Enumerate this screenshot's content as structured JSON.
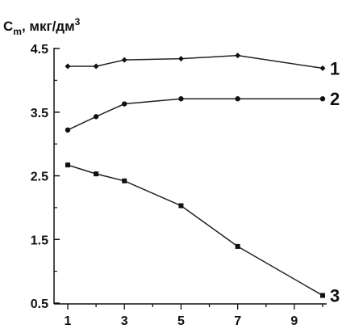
{
  "chart_data": {
    "type": "line",
    "ylabel": "C",
    "ylabel_sub": "m",
    "ylabel_unit": ", мкг/дм",
    "ylabel_sup": "3",
    "xlabel": "",
    "title": "",
    "x_ticks": [
      1,
      3,
      5,
      7,
      9
    ],
    "y_ticks": [
      0.5,
      1.5,
      2.5,
      3.5,
      4.5
    ],
    "xlim": [
      1,
      10
    ],
    "ylim": [
      0.5,
      4.5
    ],
    "grid": false,
    "colors": {
      "line": "#222222",
      "marker": "#111111"
    },
    "series": [
      {
        "label": "1",
        "marker": "diamond",
        "x": [
          1,
          2,
          3,
          5,
          7,
          10
        ],
        "y": [
          4.22,
          4.22,
          4.32,
          4.34,
          4.39,
          4.19
        ]
      },
      {
        "label": "2",
        "marker": "circle",
        "x": [
          1,
          2,
          3,
          5,
          7,
          10
        ],
        "y": [
          3.22,
          3.43,
          3.63,
          3.71,
          3.71,
          3.71
        ]
      },
      {
        "label": "3",
        "marker": "square",
        "x": [
          1,
          2,
          3,
          5,
          7,
          10
        ],
        "y": [
          2.67,
          2.53,
          2.42,
          2.03,
          1.39,
          0.62
        ]
      }
    ]
  }
}
